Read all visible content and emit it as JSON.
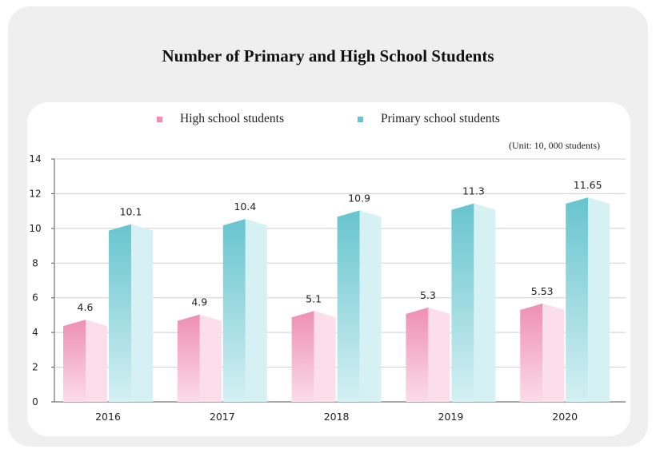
{
  "chart_data": {
    "type": "bar",
    "title": "Number of Primary and High School Students",
    "unit_note": "(Unit: 10, 000 students)",
    "categories": [
      "2016",
      "2017",
      "2018",
      "2019",
      "2020"
    ],
    "series": [
      {
        "name": "High school students",
        "values": [
          4.6,
          4.9,
          5.1,
          5.3,
          5.53
        ],
        "labels": [
          "4.6",
          "4.9",
          "5.1",
          "5.3",
          "5.53"
        ],
        "color": "#ee8fb4",
        "color_light": "#fbdce8"
      },
      {
        "name": "Primary school students",
        "values": [
          10.1,
          10.4,
          10.9,
          11.3,
          11.65
        ],
        "labels": [
          "10.1",
          "10.4",
          "10.9",
          "11.3",
          "11.65"
        ],
        "color": "#67c4ce",
        "color_light": "#d4f0f3"
      }
    ],
    "yticks": [
      "0",
      "2",
      "4",
      "6",
      "8",
      "10",
      "12",
      "14"
    ],
    "ylim": [
      0,
      14
    ],
    "grid": true,
    "legend_position": "top"
  }
}
